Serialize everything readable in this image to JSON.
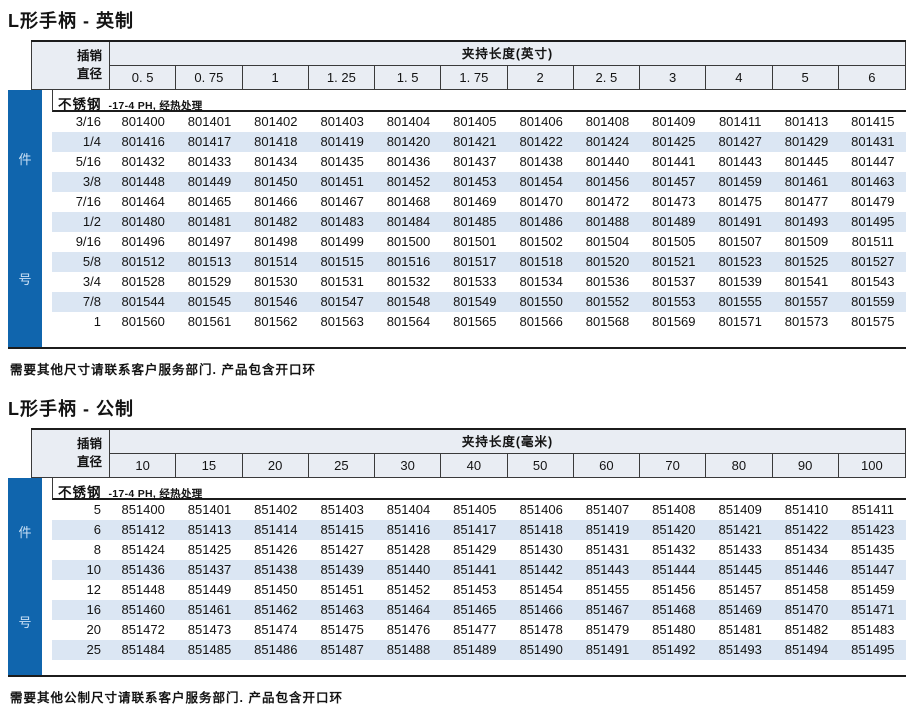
{
  "tables": [
    {
      "title": "L形手柄 - 英制",
      "pin_header_lines": [
        "插销",
        "直径"
      ],
      "span_header": "夹持长度(英寸)",
      "columns": [
        "0. 5",
        "0. 75",
        "1",
        "1. 25",
        "1. 5",
        "1. 75",
        "2",
        "2. 5",
        "3",
        "4",
        "5",
        "6"
      ],
      "material": "不锈钢",
      "material_note": "-17-4 PH, 经热处理",
      "side_labels": [
        "件",
        "号"
      ],
      "rows": [
        {
          "diameter": "3/16",
          "part_numbers": [
            "801400",
            "801401",
            "801402",
            "801403",
            "801404",
            "801405",
            "801406",
            "801408",
            "801409",
            "801411",
            "801413",
            "801415"
          ]
        },
        {
          "diameter": "1/4",
          "part_numbers": [
            "801416",
            "801417",
            "801418",
            "801419",
            "801420",
            "801421",
            "801422",
            "801424",
            "801425",
            "801427",
            "801429",
            "801431"
          ]
        },
        {
          "diameter": "5/16",
          "part_numbers": [
            "801432",
            "801433",
            "801434",
            "801435",
            "801436",
            "801437",
            "801438",
            "801440",
            "801441",
            "801443",
            "801445",
            "801447"
          ]
        },
        {
          "diameter": "3/8",
          "part_numbers": [
            "801448",
            "801449",
            "801450",
            "801451",
            "801452",
            "801453",
            "801454",
            "801456",
            "801457",
            "801459",
            "801461",
            "801463"
          ]
        },
        {
          "diameter": "7/16",
          "part_numbers": [
            "801464",
            "801465",
            "801466",
            "801467",
            "801468",
            "801469",
            "801470",
            "801472",
            "801473",
            "801475",
            "801477",
            "801479"
          ]
        },
        {
          "diameter": "1/2",
          "part_numbers": [
            "801480",
            "801481",
            "801482",
            "801483",
            "801484",
            "801485",
            "801486",
            "801488",
            "801489",
            "801491",
            "801493",
            "801495"
          ]
        },
        {
          "diameter": "9/16",
          "part_numbers": [
            "801496",
            "801497",
            "801498",
            "801499",
            "801500",
            "801501",
            "801502",
            "801504",
            "801505",
            "801507",
            "801509",
            "801511"
          ]
        },
        {
          "diameter": "5/8",
          "part_numbers": [
            "801512",
            "801513",
            "801514",
            "801515",
            "801516",
            "801517",
            "801518",
            "801520",
            "801521",
            "801523",
            "801525",
            "801527"
          ]
        },
        {
          "diameter": "3/4",
          "part_numbers": [
            "801528",
            "801529",
            "801530",
            "801531",
            "801532",
            "801533",
            "801534",
            "801536",
            "801537",
            "801539",
            "801541",
            "801543"
          ]
        },
        {
          "diameter": "7/8",
          "part_numbers": [
            "801544",
            "801545",
            "801546",
            "801547",
            "801548",
            "801549",
            "801550",
            "801552",
            "801553",
            "801555",
            "801557",
            "801559"
          ]
        },
        {
          "diameter": "1",
          "part_numbers": [
            "801560",
            "801561",
            "801562",
            "801563",
            "801564",
            "801565",
            "801566",
            "801568",
            "801569",
            "801571",
            "801573",
            "801575"
          ]
        }
      ],
      "note": "需要其他尺寸请联系客户服务部门.  产品包含开口环"
    },
    {
      "title": "L形手柄 - 公制",
      "pin_header_lines": [
        "插销",
        "直径"
      ],
      "span_header": "夹持长度(毫米)",
      "columns": [
        "10",
        "15",
        "20",
        "25",
        "30",
        "40",
        "50",
        "60",
        "70",
        "80",
        "90",
        "100"
      ],
      "material": "不锈钢",
      "material_note": "-17-4 PH, 经热处理",
      "side_labels": [
        "件",
        "号"
      ],
      "rows": [
        {
          "diameter": "5",
          "part_numbers": [
            "851400",
            "851401",
            "851402",
            "851403",
            "851404",
            "851405",
            "851406",
            "851407",
            "851408",
            "851409",
            "851410",
            "851411"
          ]
        },
        {
          "diameter": "6",
          "part_numbers": [
            "851412",
            "851413",
            "851414",
            "851415",
            "851416",
            "851417",
            "851418",
            "851419",
            "851420",
            "851421",
            "851422",
            "851423"
          ]
        },
        {
          "diameter": "8",
          "part_numbers": [
            "851424",
            "851425",
            "851426",
            "851427",
            "851428",
            "851429",
            "851430",
            "851431",
            "851432",
            "851433",
            "851434",
            "851435"
          ]
        },
        {
          "diameter": "10",
          "part_numbers": [
            "851436",
            "851437",
            "851438",
            "851439",
            "851440",
            "851441",
            "851442",
            "851443",
            "851444",
            "851445",
            "851446",
            "851447"
          ]
        },
        {
          "diameter": "12",
          "part_numbers": [
            "851448",
            "851449",
            "851450",
            "851451",
            "851452",
            "851453",
            "851454",
            "851455",
            "851456",
            "851457",
            "851458",
            "851459"
          ]
        },
        {
          "diameter": "16",
          "part_numbers": [
            "851460",
            "851461",
            "851462",
            "851463",
            "851464",
            "851465",
            "851466",
            "851467",
            "851468",
            "851469",
            "851470",
            "851471"
          ]
        },
        {
          "diameter": "20",
          "part_numbers": [
            "851472",
            "851473",
            "851474",
            "851475",
            "851476",
            "851477",
            "851478",
            "851479",
            "851480",
            "851481",
            "851482",
            "851483"
          ]
        },
        {
          "diameter": "25",
          "part_numbers": [
            "851484",
            "851485",
            "851486",
            "851487",
            "851488",
            "851489",
            "851490",
            "851491",
            "851492",
            "851493",
            "851494",
            "851495"
          ]
        }
      ],
      "note": "需要其他公制尺寸请联系客户服务部门.  产品包含开口环"
    }
  ],
  "colors": {
    "bar_blue": "#1065ad",
    "header_bg": "#e9edf3",
    "row_stripe": "#dbe6f3"
  }
}
